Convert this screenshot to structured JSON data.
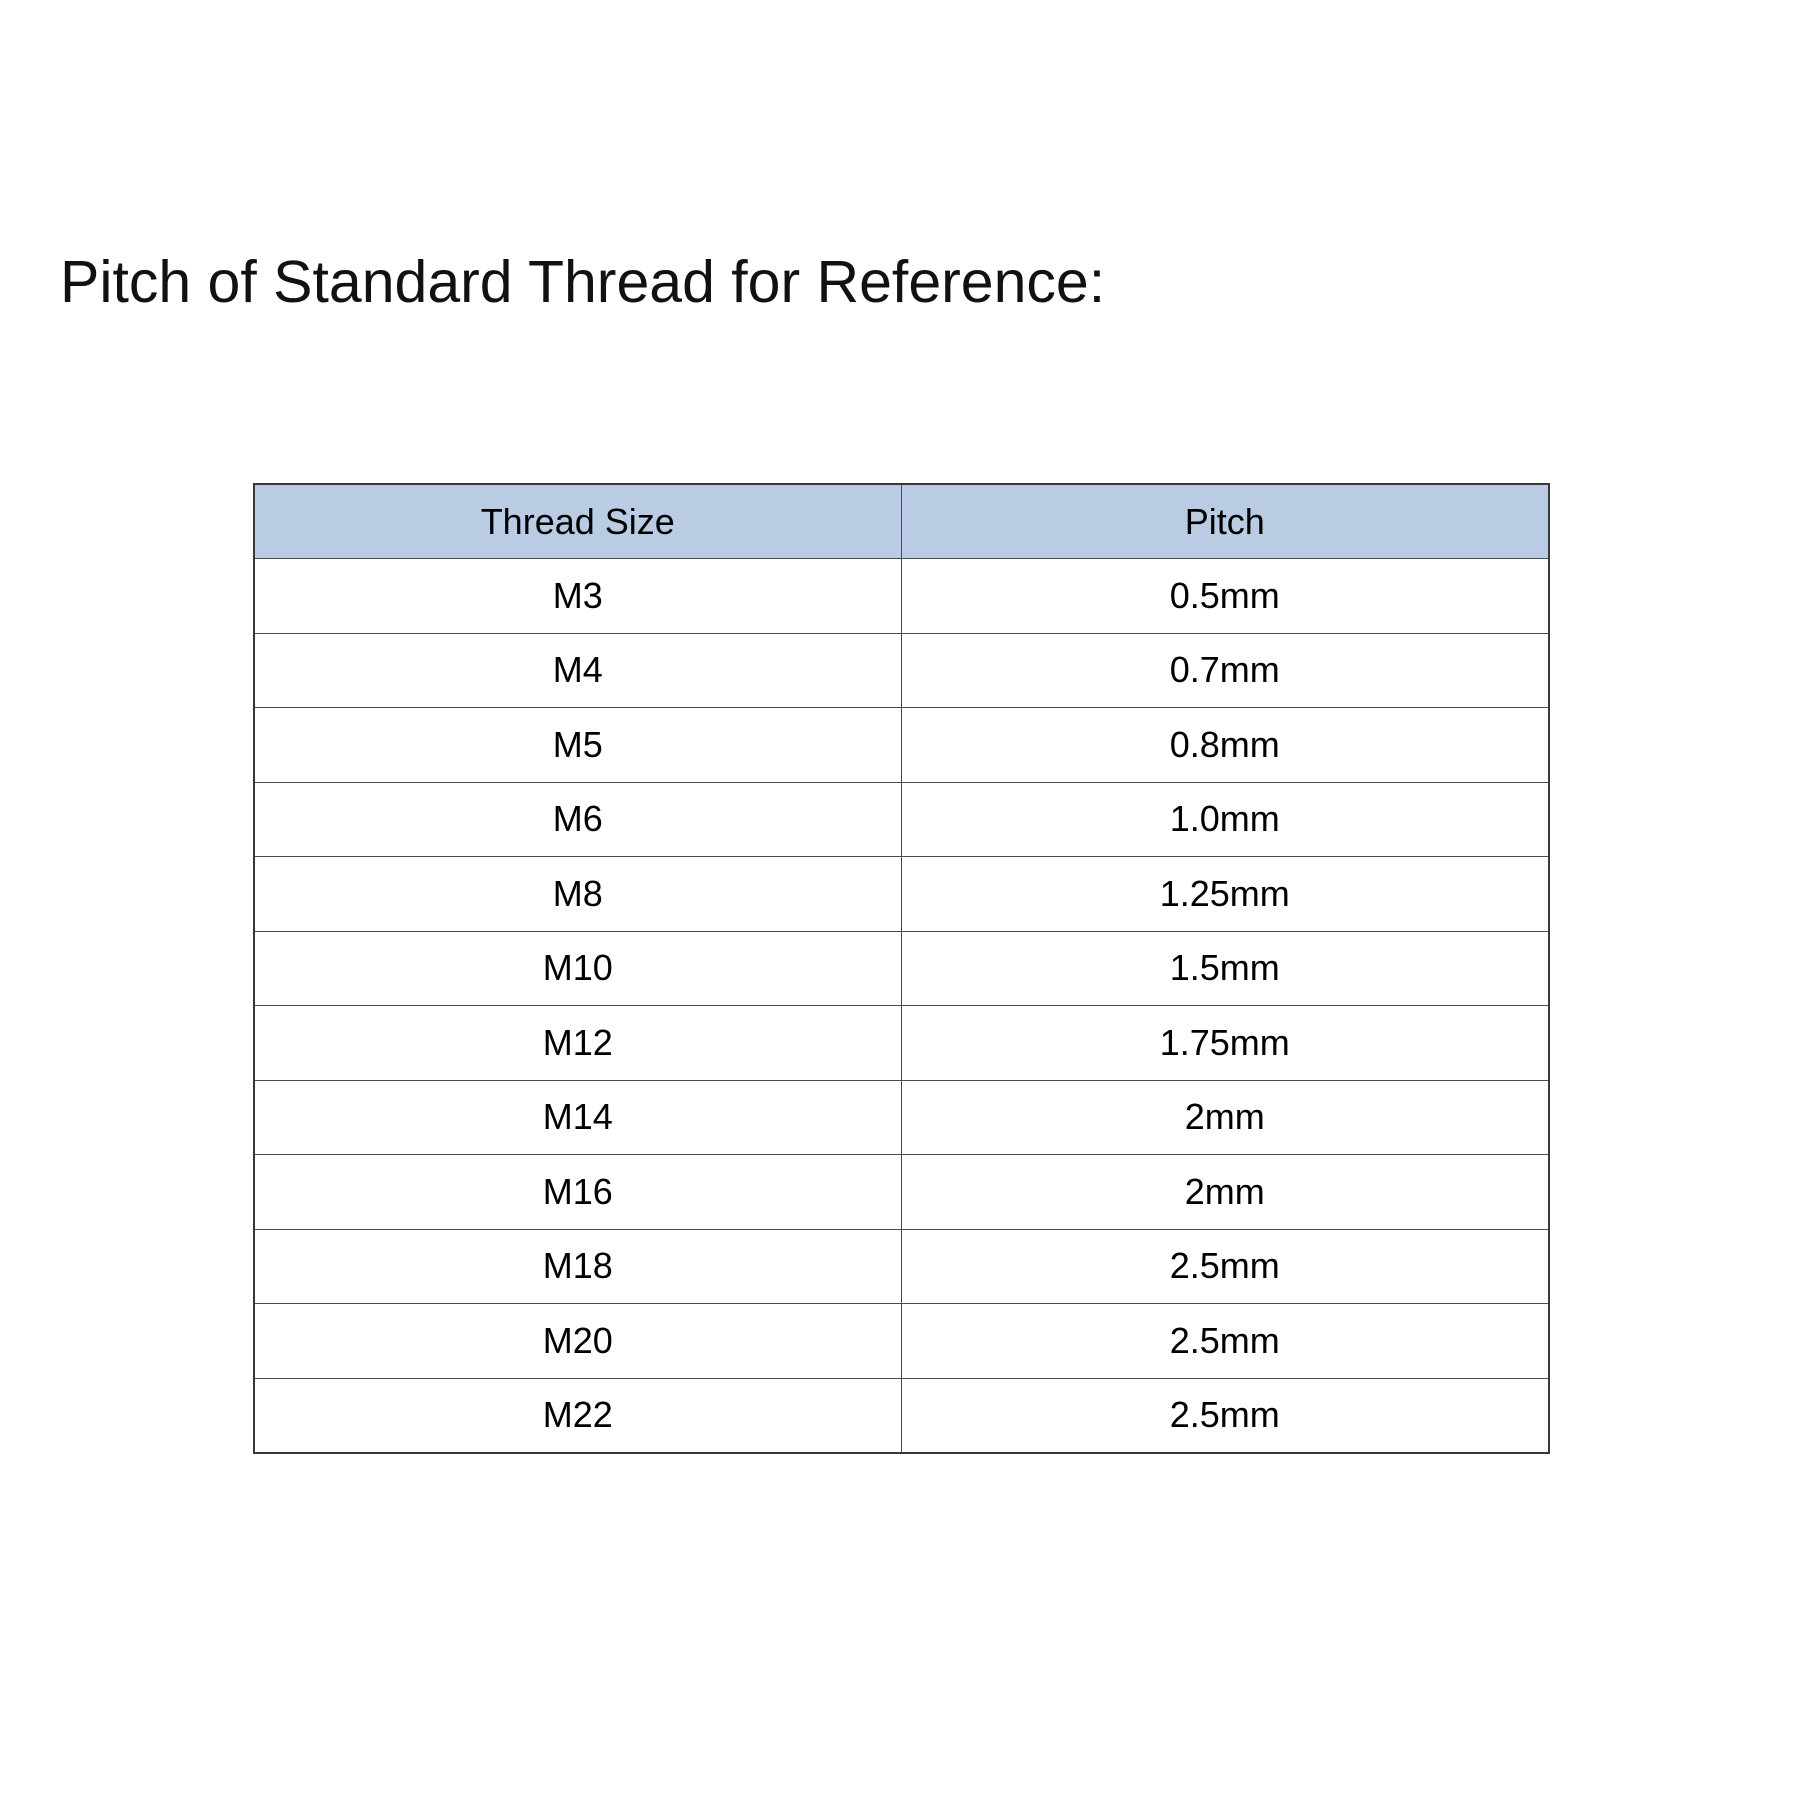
{
  "chart_data": {
    "type": "table",
    "title": "Pitch of Standard Thread for Reference:",
    "columns": [
      "Thread Size",
      "Pitch"
    ],
    "rows": [
      [
        "M3",
        "0.5mm"
      ],
      [
        "M4",
        "0.7mm"
      ],
      [
        "M5",
        "0.8mm"
      ],
      [
        "M6",
        "1.0mm"
      ],
      [
        "M8",
        "1.25mm"
      ],
      [
        "M10",
        "1.5mm"
      ],
      [
        "M12",
        "1.75mm"
      ],
      [
        "M14",
        "2mm"
      ],
      [
        "M16",
        "2mm"
      ],
      [
        "M18",
        "2.5mm"
      ],
      [
        "M20",
        "2.5mm"
      ],
      [
        "M22",
        "2.5mm"
      ]
    ],
    "layout": {
      "header_row": true,
      "grid": true,
      "column_split": "50/50",
      "text_align": "center"
    },
    "colors": {
      "header_bg": "#b9cce4",
      "border": "#4b4b4b",
      "text": "#000000",
      "background": "#ffffff"
    }
  }
}
